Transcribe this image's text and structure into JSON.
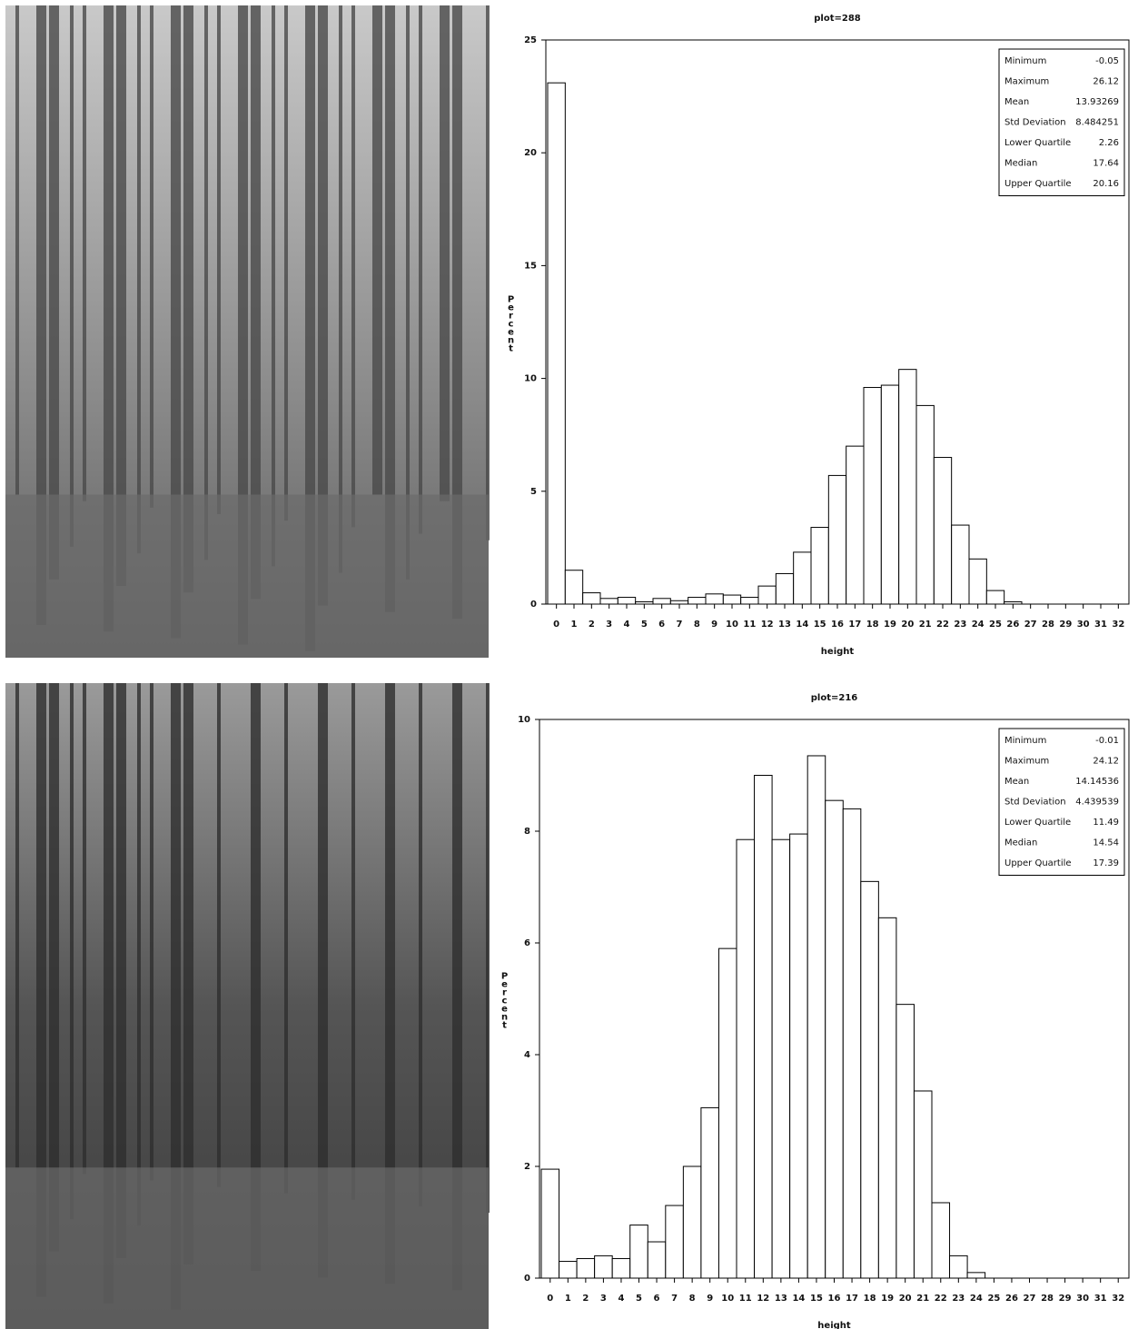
{
  "chart_data": [
    {
      "type": "bar",
      "title": "plot=288",
      "x_label": "height",
      "y_label": "Percent",
      "categories": [
        0,
        1,
        2,
        3,
        4,
        5,
        6,
        7,
        8,
        9,
        10,
        11,
        12,
        13,
        14,
        15,
        16,
        17,
        18,
        19,
        20,
        21,
        22,
        23,
        24,
        25,
        26,
        27,
        28,
        29,
        30,
        31,
        32
      ],
      "values": [
        23.1,
        1.5,
        0.5,
        0.25,
        0.3,
        0.1,
        0.25,
        0.15,
        0.3,
        0.45,
        0.4,
        0.3,
        0.8,
        1.35,
        2.3,
        3.4,
        5.7,
        7.0,
        9.6,
        9.7,
        10.4,
        8.8,
        6.5,
        3.5,
        2.0,
        0.6,
        0.1,
        0,
        0,
        0,
        0,
        0,
        0
      ],
      "color": "#ffffff",
      "ylim": [
        0,
        25
      ],
      "yticks": [
        0,
        5,
        10,
        15,
        20,
        25
      ],
      "stats": [
        {
          "label": "Minimum",
          "value": -0.05
        },
        {
          "label": "Maximum",
          "value": 26.12
        },
        {
          "label": "Mean",
          "value": 13.93269
        },
        {
          "label": "Std Deviation",
          "value": 8.484251
        },
        {
          "label": "Lower Quartile",
          "value": 2.26
        },
        {
          "label": "Median",
          "value": 17.64
        },
        {
          "label": "Upper Quartile",
          "value": 20.16
        }
      ]
    },
    {
      "type": "bar",
      "title": "plot=216",
      "x_label": "height",
      "y_label": "Percent",
      "categories": [
        0,
        1,
        2,
        3,
        4,
        5,
        6,
        7,
        8,
        9,
        10,
        11,
        12,
        13,
        14,
        15,
        16,
        17,
        18,
        19,
        20,
        21,
        22,
        23,
        24,
        25,
        26,
        27,
        28,
        29,
        30,
        31,
        32
      ],
      "values": [
        1.95,
        0.3,
        0.35,
        0.4,
        0.35,
        0.95,
        0.65,
        1.3,
        2.0,
        3.05,
        5.9,
        7.85,
        9.0,
        7.85,
        7.95,
        9.35,
        8.55,
        8.4,
        7.1,
        6.45,
        4.9,
        3.35,
        1.35,
        0.4,
        0.1,
        0,
        0,
        0,
        0,
        0,
        0,
        0,
        0
      ],
      "color": "#ffffff",
      "ylim": [
        0,
        10
      ],
      "yticks": [
        0,
        2,
        4,
        6,
        8,
        10
      ],
      "stats": [
        {
          "label": "Minimum",
          "value": -0.01
        },
        {
          "label": "Maximum",
          "value": 24.12
        },
        {
          "label": "Mean",
          "value": 14.14536
        },
        {
          "label": "Std Deviation",
          "value": 4.439539
        },
        {
          "label": "Lower Quartile",
          "value": 11.49
        },
        {
          "label": "Median",
          "value": 14.54
        },
        {
          "label": "Upper Quartile",
          "value": 17.39
        }
      ]
    }
  ]
}
